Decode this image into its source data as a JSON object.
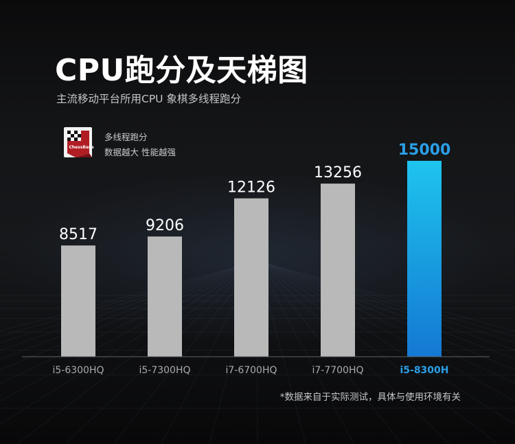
{
  "page": {
    "title": "CPU跑分及天梯图",
    "subtitle": "主流移动平台所用CPU 象棋多线程跑分",
    "footnote": "*数据来自于实际测试，具体与使用环境有关"
  },
  "legend": {
    "logo_text": "ChessBase",
    "line1": "多线程跑分",
    "line2": "数据越大 性能越强"
  },
  "colors": {
    "bar_default": "#b9b9b9",
    "highlight_top": "#1ec4ee",
    "highlight_bottom": "#1478d2",
    "highlight_label": "#2b9fe8",
    "value_label": "#ffffff",
    "category_label": "#a9abae",
    "baseline": "#5e6166"
  },
  "chart_data": {
    "type": "bar",
    "categories": [
      "i5-6300HQ",
      "i5-7300HQ",
      "i7-6700HQ",
      "i7-7700HQ",
      "i5-8300H"
    ],
    "values": [
      8517,
      9206,
      12126,
      13256,
      15000
    ],
    "highlight_index": 4,
    "data_labels": [
      "8517",
      "9206",
      "12126",
      "13256",
      "15000"
    ],
    "title": "",
    "xlabel": "",
    "ylabel": "",
    "ylim": [
      0,
      17000
    ],
    "grid": false,
    "legend": "none"
  }
}
